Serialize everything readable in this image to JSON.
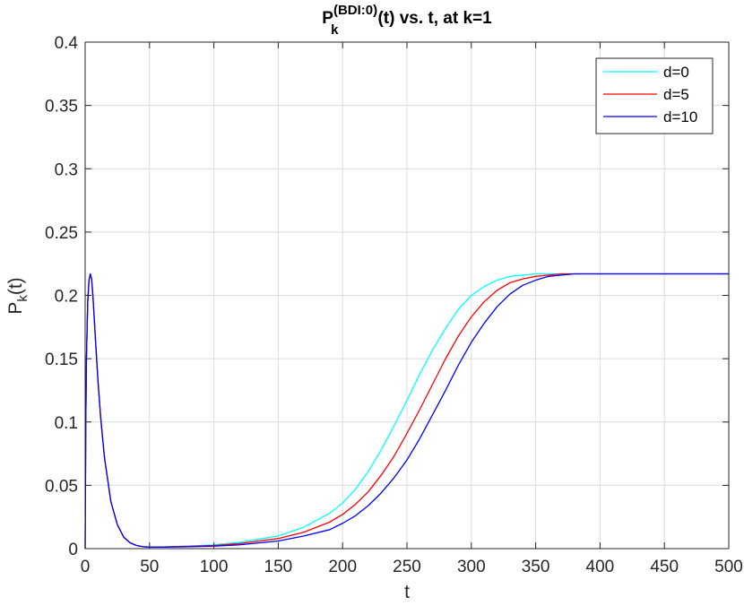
{
  "chart_data": {
    "type": "line",
    "title": {
      "main": "P",
      "sub": "k",
      "sup": "(BDI:0)",
      "rest": "(t) vs. t, at k=1"
    },
    "xlabel": "t",
    "ylabel": {
      "main": "P",
      "sub": "k",
      "rest": "(t)"
    },
    "xlim": [
      0,
      500
    ],
    "ylim": [
      0,
      0.4
    ],
    "xticks": [
      "0",
      "50",
      "100",
      "150",
      "200",
      "250",
      "300",
      "350",
      "400",
      "450",
      "500"
    ],
    "yticks": [
      "0",
      "0.05",
      "0.1",
      "0.15",
      "0.2",
      "0.25",
      "0.3",
      "0.35",
      "0.4"
    ],
    "xtick_values": [
      0,
      50,
      100,
      150,
      200,
      250,
      300,
      350,
      400,
      450,
      500
    ],
    "ytick_values": [
      0,
      0.05,
      0.1,
      0.15,
      0.2,
      0.25,
      0.3,
      0.35,
      0.4
    ],
    "grid": true,
    "legend_position": "top-right",
    "series": [
      {
        "name": "d=0",
        "color": "#00ffff",
        "x": [
          0,
          0.5,
          1,
          2,
          3,
          4,
          5,
          6,
          7,
          8,
          10,
          12,
          15,
          20,
          25,
          30,
          35,
          40,
          45,
          50,
          60,
          80,
          100,
          120,
          150,
          170,
          190,
          200,
          210,
          220,
          230,
          240,
          250,
          260,
          270,
          280,
          290,
          300,
          310,
          320,
          330,
          340,
          350,
          360,
          380,
          400,
          450,
          500
        ],
        "y": [
          0,
          0.1,
          0.15,
          0.195,
          0.212,
          0.217,
          0.213,
          0.2,
          0.183,
          0.165,
          0.132,
          0.104,
          0.072,
          0.037,
          0.019,
          0.009,
          0.0045,
          0.0025,
          0.0015,
          0.0012,
          0.0013,
          0.002,
          0.003,
          0.005,
          0.01,
          0.017,
          0.028,
          0.036,
          0.047,
          0.061,
          0.078,
          0.097,
          0.117,
          0.138,
          0.157,
          0.174,
          0.189,
          0.2,
          0.207,
          0.212,
          0.215,
          0.216,
          0.217,
          0.217,
          0.217,
          0.217,
          0.217,
          0.217
        ]
      },
      {
        "name": "d=5",
        "color": "#ff0000",
        "x": [
          0,
          0.5,
          1,
          2,
          3,
          4,
          5,
          6,
          7,
          8,
          10,
          12,
          15,
          20,
          25,
          30,
          35,
          40,
          45,
          50,
          60,
          80,
          100,
          120,
          150,
          170,
          190,
          200,
          210,
          220,
          230,
          240,
          250,
          260,
          270,
          280,
          290,
          300,
          310,
          320,
          330,
          340,
          350,
          360,
          370,
          380,
          400,
          450,
          500
        ],
        "y": [
          0,
          0.1,
          0.15,
          0.195,
          0.212,
          0.217,
          0.213,
          0.2,
          0.183,
          0.165,
          0.132,
          0.104,
          0.072,
          0.037,
          0.019,
          0.009,
          0.0045,
          0.0025,
          0.0015,
          0.0012,
          0.0013,
          0.0018,
          0.0025,
          0.004,
          0.008,
          0.013,
          0.021,
          0.027,
          0.035,
          0.045,
          0.058,
          0.073,
          0.091,
          0.11,
          0.13,
          0.15,
          0.168,
          0.183,
          0.195,
          0.204,
          0.21,
          0.213,
          0.215,
          0.216,
          0.217,
          0.217,
          0.217,
          0.217,
          0.217
        ]
      },
      {
        "name": "d=10",
        "color": "#0000ff",
        "x": [
          0,
          0.5,
          1,
          2,
          3,
          4,
          5,
          6,
          7,
          8,
          10,
          12,
          15,
          20,
          25,
          30,
          35,
          40,
          45,
          50,
          60,
          80,
          100,
          120,
          150,
          170,
          190,
          200,
          210,
          220,
          230,
          240,
          250,
          260,
          270,
          280,
          290,
          300,
          310,
          320,
          330,
          340,
          350,
          360,
          370,
          380,
          390,
          400,
          450,
          500
        ],
        "y": [
          0,
          0.1,
          0.15,
          0.195,
          0.212,
          0.217,
          0.213,
          0.2,
          0.183,
          0.165,
          0.132,
          0.104,
          0.072,
          0.037,
          0.019,
          0.009,
          0.0045,
          0.0025,
          0.0015,
          0.0012,
          0.0012,
          0.0015,
          0.002,
          0.003,
          0.006,
          0.01,
          0.015,
          0.02,
          0.026,
          0.034,
          0.044,
          0.056,
          0.07,
          0.087,
          0.106,
          0.125,
          0.145,
          0.163,
          0.178,
          0.191,
          0.201,
          0.208,
          0.212,
          0.215,
          0.216,
          0.217,
          0.217,
          0.217,
          0.217,
          0.217
        ]
      }
    ]
  }
}
